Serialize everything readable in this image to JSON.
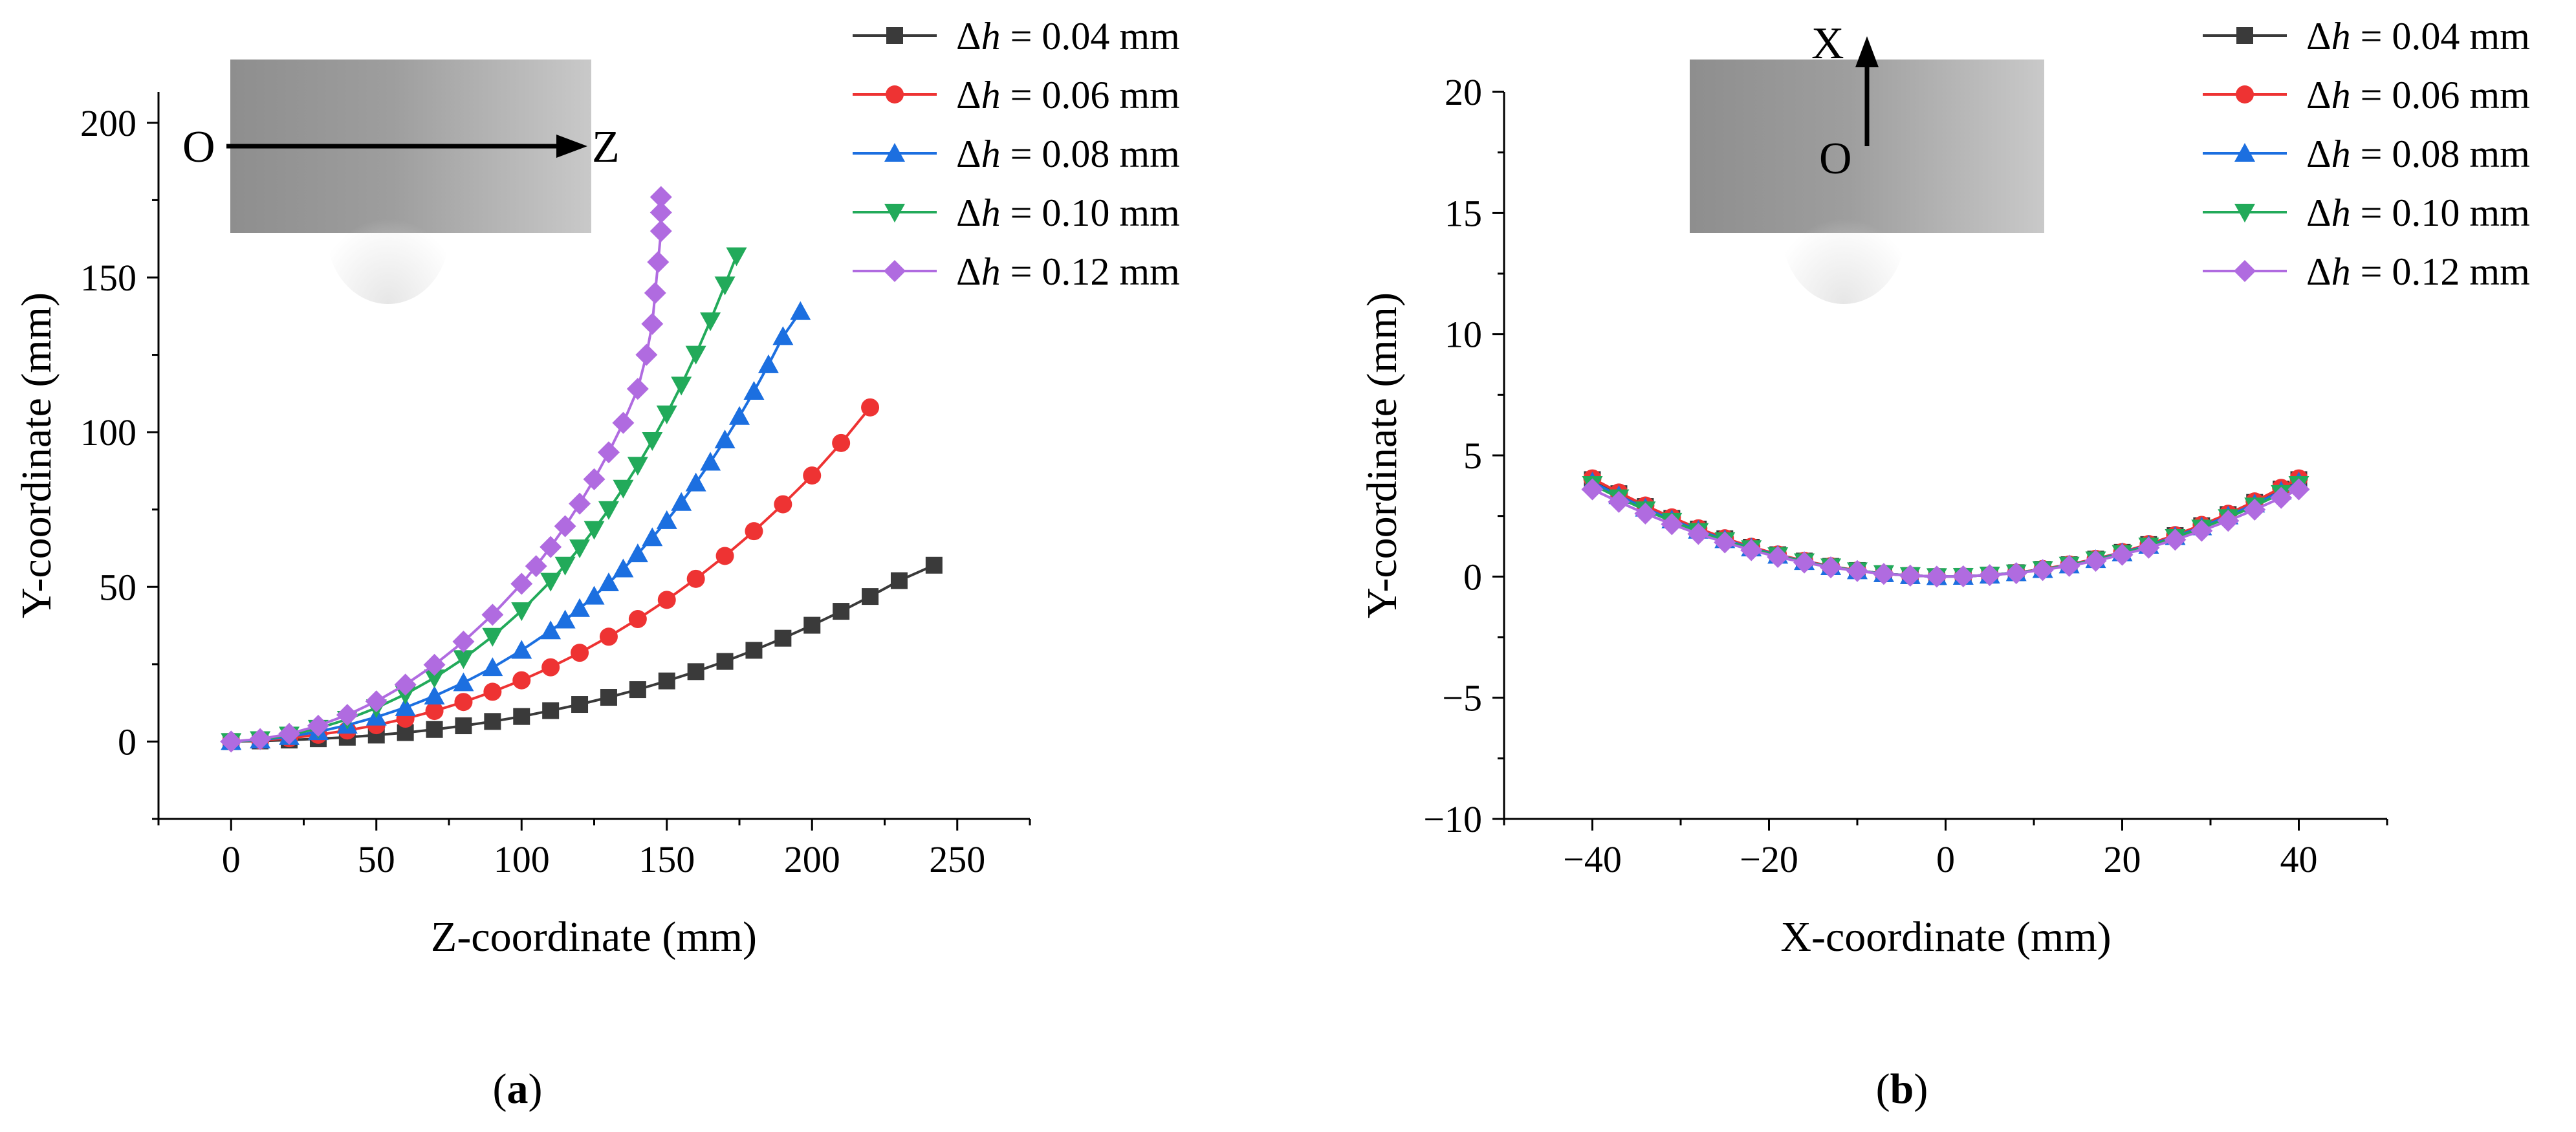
{
  "colors": {
    "s004": "#3a3a3a",
    "s006": "#ee3333",
    "s008": "#1c6fe0",
    "s010": "#22aa5a",
    "s012": "#b06be0"
  },
  "legend_prefix": "Δ",
  "legend_var": "h",
  "chart_data": [
    {
      "type": "line",
      "panel": "(a)",
      "panel_open": "(",
      "panel_letter": "a",
      "panel_close": ")",
      "xlabel": "Z-coordinate (mm)",
      "ylabel": "Y-coordinate (mm)",
      "xlim": [
        -25,
        275
      ],
      "ylim": [
        -25,
        210
      ],
      "xticks": [
        0,
        50,
        100,
        150,
        200,
        250
      ],
      "yticks": [
        0,
        50,
        100,
        150,
        200
      ],
      "inset": {
        "origin_label": "O",
        "axis_label": "Z",
        "direction": "horizontal"
      },
      "legend_position": "top-right",
      "series": [
        {
          "name": "Δh = 0.04 mm",
          "value_label": " = 0.04 mm",
          "marker": "square",
          "color_key": "s004",
          "x": [
            0,
            10,
            20,
            30,
            40,
            50,
            60,
            70,
            80,
            90,
            100,
            110,
            120,
            130,
            140,
            150,
            160,
            170,
            180,
            190,
            200,
            210,
            220,
            230,
            242
          ],
          "y": [
            0,
            0.2,
            0.5,
            0.9,
            1.4,
            2.1,
            2.9,
            3.9,
            5.1,
            6.5,
            8.1,
            10,
            12,
            14.3,
            16.8,
            19.6,
            22.6,
            25.9,
            29.5,
            33.4,
            37.6,
            42.1,
            46.9,
            52,
            57
          ]
        },
        {
          "name": "Δh = 0.06 mm",
          "value_label": " = 0.06 mm",
          "marker": "circle",
          "color_key": "s006",
          "x": [
            0,
            10,
            20,
            30,
            40,
            50,
            60,
            70,
            80,
            90,
            100,
            110,
            120,
            130,
            140,
            150,
            160,
            170,
            180,
            190,
            200,
            210,
            220
          ],
          "y": [
            0,
            0.4,
            1.1,
            2.2,
            3.6,
            5.3,
            7.4,
            9.9,
            12.8,
            16.1,
            19.8,
            24,
            28.7,
            33.9,
            39.6,
            45.8,
            52.6,
            60,
            68,
            76.7,
            86,
            96.5,
            108
          ]
        },
        {
          "name": "Δh = 0.08 mm",
          "value_label": " = 0.08 mm",
          "marker": "triangle-up",
          "color_key": "s008",
          "x": [
            0,
            10,
            20,
            30,
            40,
            50,
            60,
            70,
            80,
            90,
            100,
            110,
            115,
            120,
            125,
            130,
            135,
            140,
            145,
            150,
            155,
            160,
            165,
            170,
            175,
            180,
            185,
            190,
            196
          ],
          "y": [
            0,
            0.5,
            1.6,
            3.2,
            5.3,
            7.9,
            11,
            14.7,
            19,
            23.9,
            29.5,
            35.8,
            39.3,
            43,
            47,
            51.3,
            55.8,
            60.7,
            65.9,
            71.4,
            77.3,
            83.6,
            90.3,
            97.5,
            105.1,
            113.2,
            121.8,
            130.9,
            139
          ]
        },
        {
          "name": "Δh = 0.10 mm",
          "value_label": " = 0.10 mm",
          "marker": "triangle-down",
          "color_key": "s010",
          "x": [
            0,
            10,
            20,
            30,
            40,
            50,
            60,
            70,
            80,
            90,
            100,
            110,
            115,
            120,
            125,
            130,
            135,
            140,
            145,
            150,
            155,
            160,
            165,
            170,
            174
          ],
          "y": [
            0,
            0.6,
            2.1,
            4.3,
            7.2,
            10.9,
            15.3,
            20.6,
            26.8,
            34,
            42.3,
            51.8,
            57,
            62.6,
            68.6,
            75,
            81.9,
            89.3,
            97.3,
            105.9,
            115.2,
            125.2,
            136,
            147.6,
            157
          ]
        },
        {
          "name": "Δh = 0.12 mm",
          "value_label": " = 0.12 mm",
          "marker": "diamond",
          "color_key": "s012",
          "x": [
            0,
            10,
            20,
            30,
            40,
            50,
            60,
            70,
            80,
            90,
            100,
            105,
            110,
            115,
            120,
            125,
            130,
            135,
            140,
            143,
            145,
            146,
            147,
            148,
            148,
            148
          ],
          "y": [
            0,
            0.8,
            2.5,
            5.1,
            8.6,
            13,
            18.4,
            24.8,
            32.3,
            41,
            51,
            56.7,
            62.9,
            69.6,
            76.9,
            84.8,
            93.5,
            103,
            114,
            125,
            135,
            145,
            155,
            165,
            171,
            176
          ]
        }
      ]
    },
    {
      "type": "line",
      "panel": "(b)",
      "panel_open": "(",
      "panel_letter": "b",
      "panel_close": ")",
      "xlabel": "X-coordinate (mm)",
      "ylabel": "Y-coordinate (mm)",
      "xlim": [
        -50,
        50
      ],
      "ylim": [
        -10,
        20
      ],
      "xticks": [
        -40,
        -20,
        0,
        20,
        40
      ],
      "yticks": [
        -10,
        -5,
        0,
        5,
        10,
        15,
        20
      ],
      "inset": {
        "origin_label": "O",
        "axis_label": "X",
        "direction": "vertical"
      },
      "legend_position": "top-right",
      "series": [
        {
          "name": "Δh = 0.04 mm",
          "value_label": " = 0.04 mm",
          "marker": "square",
          "color_key": "s004",
          "x": [
            -40,
            -37,
            -34,
            -31,
            -28,
            -25,
            -22,
            -19,
            -16,
            -13,
            -10,
            -7,
            -4,
            -1,
            2,
            5,
            8,
            11,
            14,
            17,
            20,
            23,
            26,
            29,
            32,
            35,
            38,
            40
          ],
          "y": [
            4.0,
            3.42,
            2.89,
            2.4,
            1.96,
            1.56,
            1.21,
            0.9,
            0.64,
            0.42,
            0.25,
            0.12,
            0.04,
            0.0,
            0.01,
            0.06,
            0.16,
            0.3,
            0.49,
            0.72,
            1.0,
            1.32,
            1.69,
            2.1,
            2.56,
            3.06,
            3.61,
            4.0
          ]
        },
        {
          "name": "Δh = 0.06 mm",
          "value_label": " = 0.06 mm",
          "marker": "circle",
          "color_key": "s006",
          "x": [
            -40,
            -37,
            -34,
            -31,
            -28,
            -25,
            -22,
            -19,
            -16,
            -13,
            -10,
            -7,
            -4,
            -1,
            2,
            5,
            8,
            11,
            14,
            17,
            20,
            23,
            26,
            29,
            32,
            35,
            38,
            40
          ],
          "y": [
            4.05,
            3.47,
            2.93,
            2.44,
            1.99,
            1.58,
            1.23,
            0.91,
            0.65,
            0.43,
            0.25,
            0.12,
            0.04,
            0.0,
            0.01,
            0.06,
            0.16,
            0.31,
            0.5,
            0.73,
            1.01,
            1.34,
            1.71,
            2.13,
            2.59,
            3.1,
            3.66,
            4.05
          ]
        },
        {
          "name": "Δh = 0.08 mm",
          "value_label": " = 0.08 mm",
          "marker": "triangle-up",
          "color_key": "s008",
          "x": [
            -40,
            -37,
            -34,
            -31,
            -28,
            -25,
            -22,
            -19,
            -16,
            -13,
            -10,
            -7,
            -4,
            -1,
            2,
            5,
            8,
            11,
            14,
            17,
            20,
            23,
            26,
            29,
            32,
            35,
            38,
            40
          ],
          "y": [
            3.9,
            3.34,
            2.82,
            2.34,
            1.91,
            1.52,
            1.18,
            0.88,
            0.62,
            0.41,
            0.24,
            0.12,
            0.04,
            0.0,
            0.01,
            0.06,
            0.16,
            0.29,
            0.48,
            0.7,
            0.98,
            1.29,
            1.65,
            2.05,
            2.5,
            2.99,
            3.52,
            3.9
          ]
        },
        {
          "name": "Δh = 0.10 mm",
          "value_label": " = 0.10 mm",
          "marker": "triangle-down",
          "color_key": "s010",
          "x": [
            -40,
            -37,
            -34,
            -31,
            -28,
            -25,
            -22,
            -19,
            -16,
            -13,
            -10,
            -7,
            -4,
            -1,
            2,
            5,
            8,
            11,
            14,
            17,
            20,
            23,
            26,
            29,
            32,
            35,
            38,
            40
          ],
          "y": [
            3.8,
            3.25,
            2.75,
            2.28,
            1.86,
            1.48,
            1.15,
            0.86,
            0.61,
            0.4,
            0.24,
            0.12,
            0.04,
            0.0,
            0.01,
            0.06,
            0.15,
            0.29,
            0.47,
            0.69,
            0.95,
            1.26,
            1.61,
            2.0,
            2.43,
            2.91,
            3.43,
            3.8
          ]
        },
        {
          "name": "Δh = 0.12 mm",
          "value_label": " = 0.12 mm",
          "marker": "diamond",
          "color_key": "s012",
          "x": [
            -40,
            -37,
            -34,
            -31,
            -28,
            -25,
            -22,
            -19,
            -16,
            -13,
            -10,
            -7,
            -4,
            -1,
            2,
            5,
            8,
            11,
            14,
            17,
            20,
            23,
            26,
            29,
            32,
            35,
            38,
            40
          ],
          "y": [
            3.6,
            3.08,
            2.6,
            2.16,
            1.76,
            1.41,
            1.09,
            0.81,
            0.58,
            0.38,
            0.23,
            0.11,
            0.04,
            0.0,
            0.01,
            0.06,
            0.14,
            0.27,
            0.44,
            0.65,
            0.9,
            1.19,
            1.52,
            1.89,
            2.3,
            2.76,
            3.25,
            3.6
          ]
        }
      ]
    }
  ]
}
